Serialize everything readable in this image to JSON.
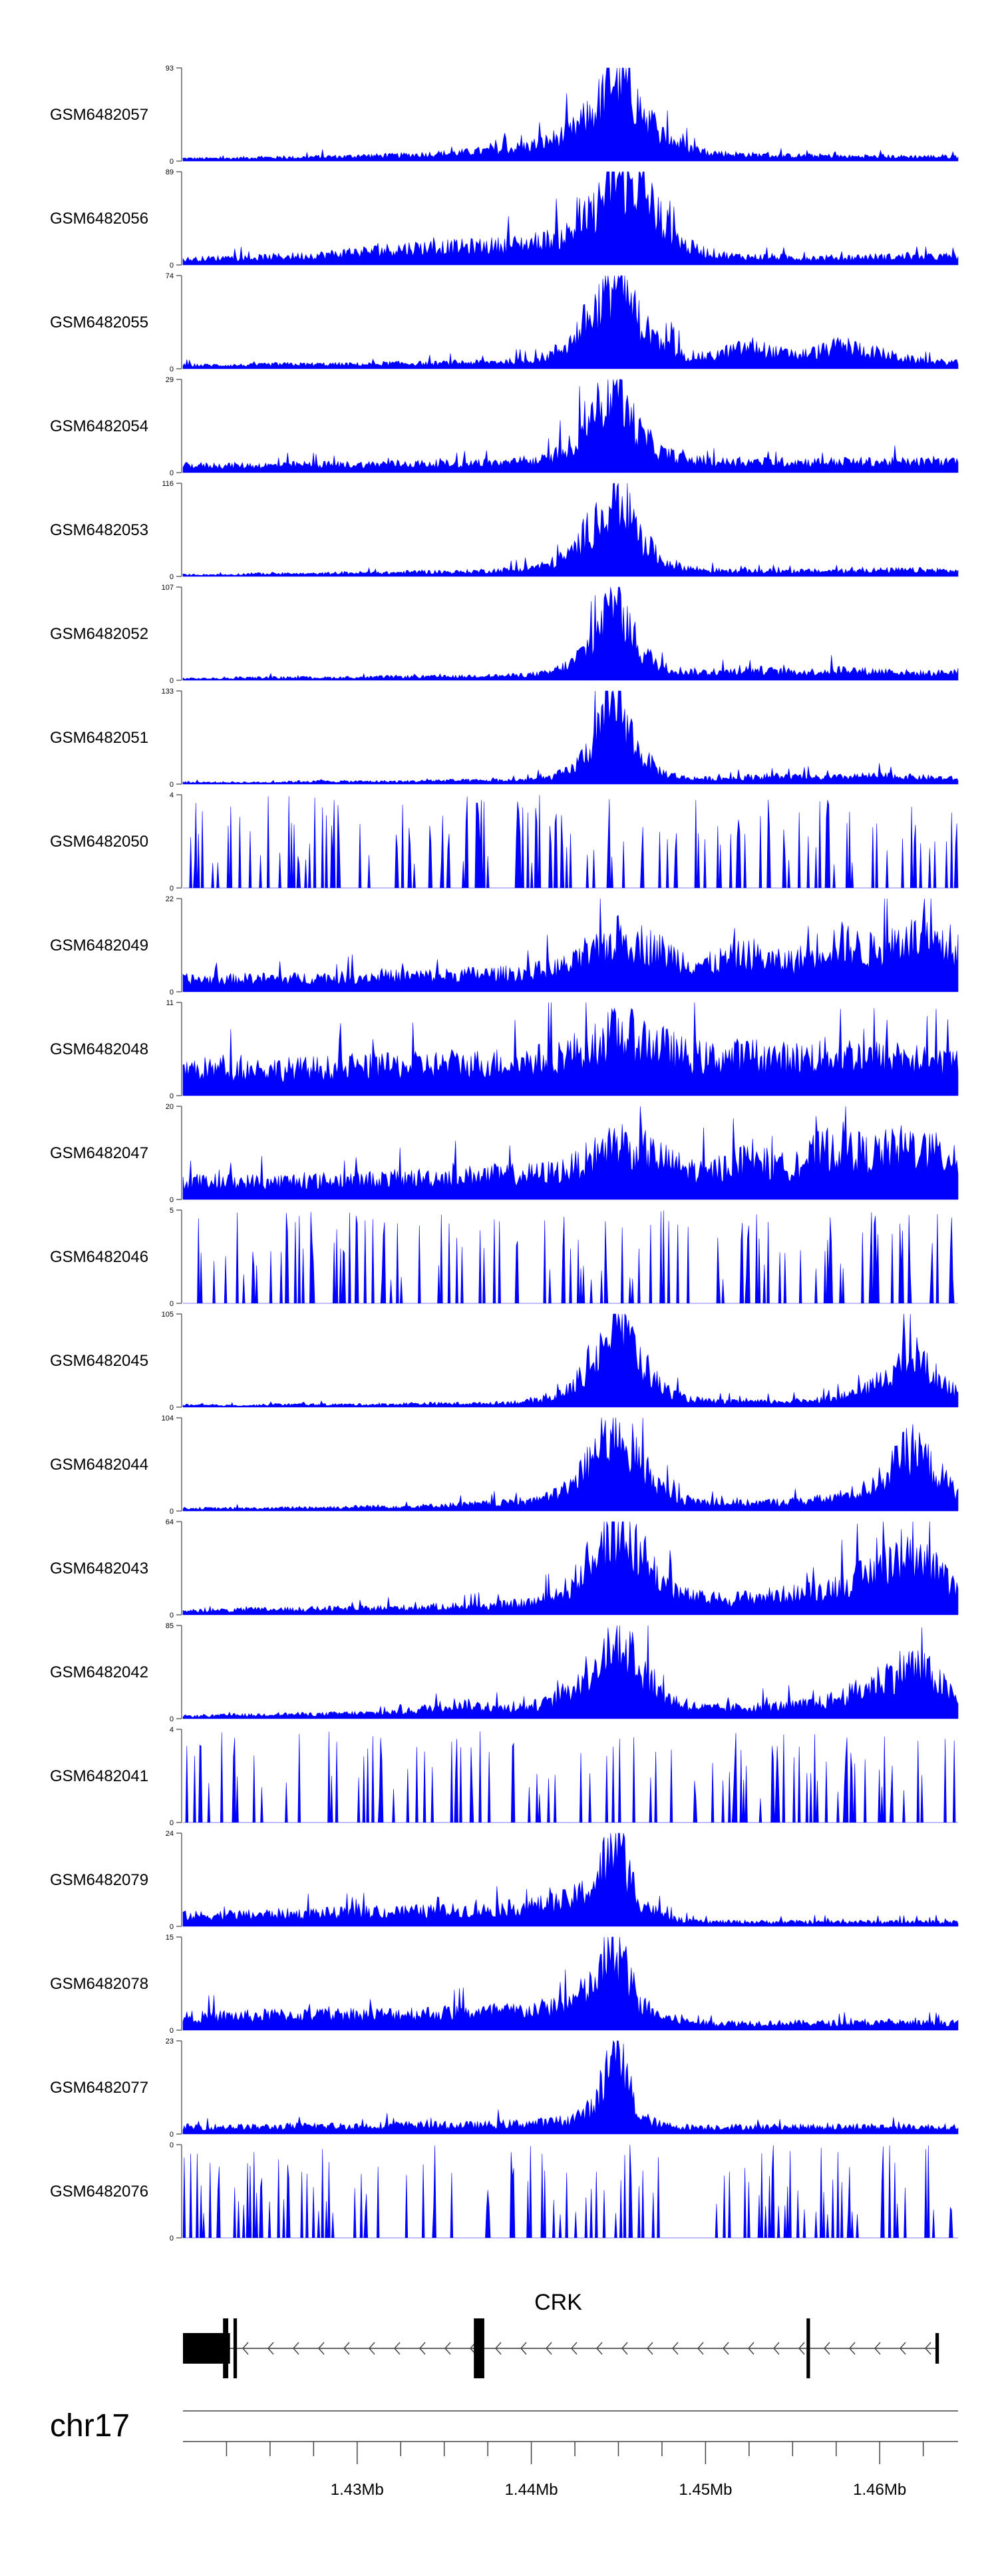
{
  "chart_data": {
    "type": "area",
    "title": "",
    "chromosome": "chr17",
    "x_range_bp": [
      1420000,
      1464500
    ],
    "x_ticks": [
      {
        "pos": 1430000,
        "label": "1.43Mb"
      },
      {
        "pos": 1440000,
        "label": "1.44Mb"
      },
      {
        "pos": 1450000,
        "label": "1.45Mb"
      },
      {
        "pos": 1460000,
        "label": "1.46Mb"
      }
    ],
    "gene": {
      "name": "CRK",
      "strand": "-",
      "start": 1420000,
      "end": 1463400,
      "exons": [
        {
          "start": 1420000,
          "end": 1422700,
          "thick": true
        },
        {
          "start": 1422300,
          "end": 1422600,
          "thick": true
        },
        {
          "start": 1422900,
          "end": 1423100,
          "thick": true
        },
        {
          "start": 1436700,
          "end": 1437300,
          "thick": true
        },
        {
          "start": 1455800,
          "end": 1456000,
          "thick": true
        },
        {
          "start": 1463200,
          "end": 1463400,
          "thick": false
        }
      ]
    },
    "series": [
      {
        "name": "GSM6482057",
        "ymin": 0,
        "ymax": 93,
        "baseline": [
          0.03,
          0.03,
          0.03,
          0.04,
          0.04,
          0.04,
          0.05,
          0.05,
          0.06,
          0.06,
          0.07,
          0.08,
          0.09,
          0.11,
          0.13,
          0.16,
          0.22,
          0.32,
          0.55,
          1.0,
          0.62,
          0.3,
          0.16,
          0.1,
          0.08,
          0.07,
          0.06,
          0.06,
          0.06,
          0.05,
          0.05,
          0.05,
          0.05,
          0.05,
          0.05
        ]
      },
      {
        "name": "GSM6482056",
        "ymin": 0,
        "ymax": 89,
        "baseline": [
          0.06,
          0.07,
          0.08,
          0.08,
          0.09,
          0.1,
          0.11,
          0.13,
          0.15,
          0.17,
          0.19,
          0.2,
          0.2,
          0.21,
          0.22,
          0.24,
          0.28,
          0.36,
          0.6,
          1.0,
          0.9,
          0.5,
          0.22,
          0.14,
          0.1,
          0.09,
          0.09,
          0.08,
          0.08,
          0.08,
          0.09,
          0.09,
          0.09,
          0.09,
          0.1
        ]
      },
      {
        "name": "GSM6482055",
        "ymin": 0,
        "ymax": 74,
        "baseline": [
          0.04,
          0.04,
          0.04,
          0.04,
          0.05,
          0.05,
          0.05,
          0.05,
          0.05,
          0.06,
          0.06,
          0.06,
          0.07,
          0.07,
          0.08,
          0.09,
          0.14,
          0.3,
          0.65,
          1.0,
          0.55,
          0.25,
          0.15,
          0.13,
          0.2,
          0.25,
          0.18,
          0.15,
          0.2,
          0.26,
          0.2,
          0.15,
          0.1,
          0.08,
          0.07
        ]
      },
      {
        "name": "GSM6482054",
        "ymin": 0,
        "ymax": 29,
        "baseline": [
          0.08,
          0.08,
          0.08,
          0.08,
          0.08,
          0.09,
          0.09,
          0.09,
          0.09,
          0.1,
          0.1,
          0.1,
          0.1,
          0.11,
          0.11,
          0.12,
          0.15,
          0.3,
          0.7,
          1.0,
          0.45,
          0.22,
          0.15,
          0.12,
          0.12,
          0.12,
          0.12,
          0.12,
          0.12,
          0.12,
          0.12,
          0.12,
          0.12,
          0.12,
          0.12
        ]
      },
      {
        "name": "GSM6482053",
        "ymin": 0,
        "ymax": 116,
        "baseline": [
          0.02,
          0.02,
          0.02,
          0.03,
          0.03,
          0.03,
          0.03,
          0.04,
          0.04,
          0.04,
          0.05,
          0.05,
          0.05,
          0.06,
          0.07,
          0.09,
          0.13,
          0.25,
          0.6,
          1.0,
          0.45,
          0.18,
          0.1,
          0.07,
          0.06,
          0.06,
          0.06,
          0.06,
          0.06,
          0.06,
          0.07,
          0.07,
          0.07,
          0.07,
          0.06
        ]
      },
      {
        "name": "GSM6482052",
        "ymin": 0,
        "ymax": 107,
        "baseline": [
          0.02,
          0.02,
          0.02,
          0.03,
          0.03,
          0.03,
          0.03,
          0.03,
          0.03,
          0.04,
          0.04,
          0.04,
          0.04,
          0.05,
          0.05,
          0.06,
          0.08,
          0.18,
          0.45,
          1.0,
          0.35,
          0.15,
          0.1,
          0.09,
          0.1,
          0.12,
          0.1,
          0.09,
          0.1,
          0.12,
          0.1,
          0.1,
          0.08,
          0.08,
          0.1
        ]
      },
      {
        "name": "GSM6482051",
        "ymin": 0,
        "ymax": 133,
        "baseline": [
          0.02,
          0.02,
          0.02,
          0.02,
          0.02,
          0.03,
          0.03,
          0.03,
          0.03,
          0.03,
          0.03,
          0.04,
          0.04,
          0.04,
          0.04,
          0.05,
          0.07,
          0.15,
          0.45,
          1.0,
          0.35,
          0.13,
          0.07,
          0.06,
          0.07,
          0.08,
          0.09,
          0.08,
          0.07,
          0.08,
          0.09,
          0.09,
          0.08,
          0.07,
          0.06
        ]
      },
      {
        "name": "GSM6482050",
        "ymin": 0,
        "ymax": 4,
        "baseline": [
          0.35,
          0.35,
          0.35,
          0.35,
          0.35,
          0.35,
          0.35,
          0.35,
          0.35,
          0.35,
          0.35,
          0.35,
          0.35,
          0.35,
          0.35,
          0.35,
          0.35,
          0.35,
          0.35,
          0.35,
          0.35,
          0.35,
          0.35,
          0.35,
          0.35,
          0.35,
          0.35,
          0.35,
          0.35,
          0.35,
          0.35,
          0.35,
          0.35,
          0.35,
          0.35
        ]
      },
      {
        "name": "GSM6482049",
        "ymin": 0,
        "ymax": 22,
        "baseline": [
          0.14,
          0.14,
          0.14,
          0.15,
          0.15,
          0.15,
          0.16,
          0.16,
          0.17,
          0.17,
          0.18,
          0.18,
          0.19,
          0.2,
          0.2,
          0.22,
          0.25,
          0.3,
          0.42,
          0.6,
          0.55,
          0.45,
          0.35,
          0.3,
          0.38,
          0.42,
          0.33,
          0.35,
          0.5,
          0.55,
          0.45,
          0.55,
          0.6,
          0.5,
          0.45
        ]
      },
      {
        "name": "GSM6482048",
        "ymin": 0,
        "ymax": 11,
        "baseline": [
          0.3,
          0.3,
          0.3,
          0.3,
          0.3,
          0.3,
          0.31,
          0.31,
          0.32,
          0.33,
          0.34,
          0.35,
          0.35,
          0.36,
          0.37,
          0.38,
          0.42,
          0.48,
          0.58,
          0.7,
          0.65,
          0.55,
          0.45,
          0.42,
          0.44,
          0.45,
          0.42,
          0.42,
          0.45,
          0.47,
          0.44,
          0.42,
          0.4,
          0.38,
          0.38
        ]
      },
      {
        "name": "GSM6482047",
        "ymin": 0,
        "ymax": 20,
        "baseline": [
          0.2,
          0.2,
          0.2,
          0.2,
          0.2,
          0.21,
          0.21,
          0.22,
          0.22,
          0.23,
          0.24,
          0.25,
          0.26,
          0.27,
          0.28,
          0.28,
          0.3,
          0.35,
          0.48,
          0.65,
          0.58,
          0.45,
          0.35,
          0.3,
          0.4,
          0.48,
          0.35,
          0.4,
          0.55,
          0.6,
          0.5,
          0.55,
          0.6,
          0.52,
          0.45
        ]
      },
      {
        "name": "GSM6482046",
        "ymin": 0,
        "ymax": 5,
        "baseline": [
          0.25,
          0.25,
          0.25,
          0.25,
          0.25,
          0.25,
          0.25,
          0.25,
          0.25,
          0.25,
          0.25,
          0.25,
          0.25,
          0.25,
          0.25,
          0.26,
          0.28,
          0.32,
          0.45,
          0.65,
          0.45,
          0.3,
          0.26,
          0.25,
          0.25,
          0.25,
          0.25,
          0.25,
          0.25,
          0.25,
          0.25,
          0.25,
          0.25,
          0.25,
          0.25
        ]
      },
      {
        "name": "GSM6482045",
        "ymin": 0,
        "ymax": 105,
        "baseline": [
          0.02,
          0.02,
          0.02,
          0.02,
          0.03,
          0.03,
          0.03,
          0.03,
          0.03,
          0.03,
          0.04,
          0.04,
          0.04,
          0.04,
          0.05,
          0.06,
          0.09,
          0.2,
          0.55,
          1.0,
          0.55,
          0.22,
          0.1,
          0.07,
          0.06,
          0.06,
          0.06,
          0.07,
          0.09,
          0.12,
          0.2,
          0.38,
          0.6,
          0.35,
          0.15
        ]
      },
      {
        "name": "GSM6482044",
        "ymin": 0,
        "ymax": 104,
        "baseline": [
          0.03,
          0.03,
          0.03,
          0.03,
          0.03,
          0.04,
          0.04,
          0.04,
          0.05,
          0.05,
          0.05,
          0.06,
          0.07,
          0.08,
          0.09,
          0.11,
          0.15,
          0.28,
          0.6,
          1.0,
          0.55,
          0.25,
          0.13,
          0.1,
          0.09,
          0.09,
          0.1,
          0.11,
          0.13,
          0.17,
          0.25,
          0.45,
          0.72,
          0.45,
          0.2
        ]
      },
      {
        "name": "GSM6482043",
        "ymin": 0,
        "ymax": 64,
        "baseline": [
          0.04,
          0.05,
          0.05,
          0.06,
          0.06,
          0.06,
          0.07,
          0.07,
          0.07,
          0.08,
          0.08,
          0.09,
          0.1,
          0.1,
          0.11,
          0.13,
          0.18,
          0.32,
          0.65,
          1.0,
          0.7,
          0.38,
          0.22,
          0.18,
          0.18,
          0.2,
          0.22,
          0.24,
          0.28,
          0.35,
          0.45,
          0.62,
          0.75,
          0.5,
          0.25
        ]
      },
      {
        "name": "GSM6482042",
        "ymin": 0,
        "ymax": 85,
        "baseline": [
          0.03,
          0.03,
          0.04,
          0.04,
          0.05,
          0.05,
          0.05,
          0.06,
          0.06,
          0.07,
          0.09,
          0.13,
          0.17,
          0.14,
          0.12,
          0.13,
          0.18,
          0.32,
          0.6,
          1.0,
          0.6,
          0.28,
          0.15,
          0.12,
          0.12,
          0.13,
          0.14,
          0.15,
          0.18,
          0.25,
          0.35,
          0.5,
          0.6,
          0.45,
          0.2
        ]
      },
      {
        "name": "GSM6482041",
        "ymin": 0,
        "ymax": 4,
        "baseline": [
          0.4,
          0.4,
          0.4,
          0.4,
          0.4,
          0.4,
          0.4,
          0.4,
          0.4,
          0.4,
          0.4,
          0.4,
          0.4,
          0.4,
          0.4,
          0.4,
          0.4,
          0.4,
          0.4,
          0.4,
          0.4,
          0.4,
          0.4,
          0.4,
          0.4,
          0.4,
          0.4,
          0.4,
          0.4,
          0.4,
          0.4,
          0.4,
          0.4,
          0.4,
          0.4
        ]
      },
      {
        "name": "GSM6482079",
        "ymin": 0,
        "ymax": 24,
        "baseline": [
          0.12,
          0.12,
          0.13,
          0.13,
          0.14,
          0.14,
          0.15,
          0.15,
          0.16,
          0.16,
          0.17,
          0.17,
          0.18,
          0.18,
          0.2,
          0.22,
          0.25,
          0.3,
          0.45,
          1.0,
          0.3,
          0.12,
          0.06,
          0.05,
          0.05,
          0.05,
          0.05,
          0.05,
          0.05,
          0.05,
          0.05,
          0.05,
          0.05,
          0.05,
          0.05
        ]
      },
      {
        "name": "GSM6482078",
        "ymin": 0,
        "ymax": 15,
        "baseline": [
          0.15,
          0.15,
          0.16,
          0.16,
          0.17,
          0.17,
          0.17,
          0.18,
          0.18,
          0.18,
          0.19,
          0.19,
          0.2,
          0.2,
          0.21,
          0.22,
          0.25,
          0.32,
          0.5,
          1.0,
          0.3,
          0.15,
          0.1,
          0.08,
          0.08,
          0.08,
          0.08,
          0.08,
          0.08,
          0.08,
          0.08,
          0.08,
          0.08,
          0.08,
          0.08
        ]
      },
      {
        "name": "GSM6482077",
        "ymin": 0,
        "ymax": 23,
        "baseline": [
          0.08,
          0.08,
          0.08,
          0.08,
          0.08,
          0.09,
          0.09,
          0.09,
          0.09,
          0.1,
          0.1,
          0.1,
          0.1,
          0.1,
          0.11,
          0.12,
          0.13,
          0.16,
          0.3,
          1.0,
          0.2,
          0.1,
          0.08,
          0.08,
          0.08,
          0.08,
          0.08,
          0.08,
          0.08,
          0.08,
          0.08,
          0.08,
          0.08,
          0.08,
          0.08
        ]
      },
      {
        "name": "GSM6482076",
        "ymin": 0,
        "ymax": 0,
        "baseline": [
          0.08,
          0.08,
          0.08,
          0.09,
          0.09,
          0.09,
          0.09,
          0.1,
          0.1,
          0.1,
          0.11,
          0.11,
          0.12,
          0.12,
          0.13,
          0.14,
          0.16,
          0.2,
          0.4,
          1.0,
          0.4,
          0.12,
          0.09,
          0.08,
          0.08,
          0.08,
          0.1,
          0.12,
          0.1,
          0.09,
          0.08,
          0.08,
          0.08,
          0.08,
          0.08
        ]
      }
    ]
  }
}
